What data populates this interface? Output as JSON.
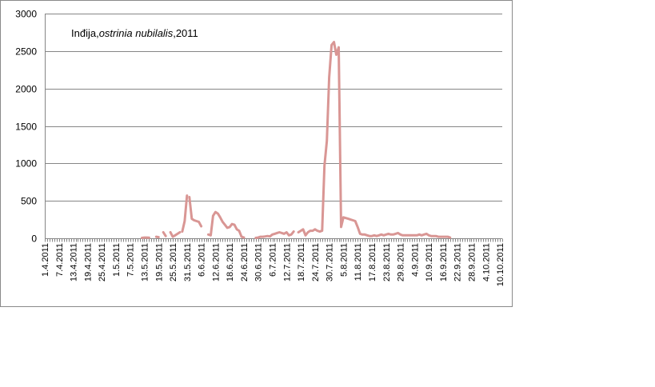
{
  "chart_data": {
    "type": "line",
    "title_parts": {
      "place": "Inđija,",
      "species": "ostrinia nubilalis",
      "year": ",2011"
    },
    "xlabel": "",
    "ylabel": "",
    "ylim": [
      0,
      3000
    ],
    "yticks": [
      0,
      500,
      1000,
      1500,
      2000,
      2500,
      3000
    ],
    "xlim_day": [
      1,
      193
    ],
    "xticks": [
      {
        "label": "1.4.2011",
        "day": 1
      },
      {
        "label": "7.4.2011",
        "day": 7
      },
      {
        "label": "13.4.2011",
        "day": 13
      },
      {
        "label": "19.4.2011",
        "day": 19
      },
      {
        "label": "25.4.2011",
        "day": 25
      },
      {
        "label": "1.5.2011",
        "day": 31
      },
      {
        "label": "7.5.2011",
        "day": 37
      },
      {
        "label": "13.5.2011",
        "day": 43
      },
      {
        "label": "19.5.2011",
        "day": 49
      },
      {
        "label": "25.5.2011",
        "day": 55
      },
      {
        "label": "31.5.2011",
        "day": 61
      },
      {
        "label": "6.6.2011",
        "day": 67
      },
      {
        "label": "12.6.2011",
        "day": 73
      },
      {
        "label": "18.6.2011",
        "day": 79
      },
      {
        "label": "24.6.2011",
        "day": 85
      },
      {
        "label": "30.6.2011",
        "day": 91
      },
      {
        "label": "6.7.2011",
        "day": 97
      },
      {
        "label": "12.7.2011",
        "day": 103
      },
      {
        "label": "18.7.2011",
        "day": 109
      },
      {
        "label": "24.7.2011",
        "day": 115
      },
      {
        "label": "30.7.2011",
        "day": 121
      },
      {
        "label": "5.8.2011",
        "day": 127
      },
      {
        "label": "11.8.2011",
        "day": 133
      },
      {
        "label": "17.8.2011",
        "day": 139
      },
      {
        "label": "23.8.2011",
        "day": 145
      },
      {
        "label": "29.8.2011",
        "day": 151
      },
      {
        "label": "4.9.2011",
        "day": 157
      },
      {
        "label": "10.9.2011",
        "day": 163
      },
      {
        "label": "16.9.2011",
        "day": 169
      },
      {
        "label": "22.9.2011",
        "day": 175
      },
      {
        "label": "28.9.2011",
        "day": 181
      },
      {
        "label": "4.10.2011",
        "day": 187
      },
      {
        "label": "10.10.2011",
        "day": 193
      }
    ],
    "grid": true,
    "legend": "none",
    "series_color": "#d99694",
    "grid_color": "#868686",
    "segments": [
      [
        [
          42,
          5
        ],
        [
          43,
          10
        ],
        [
          44,
          10
        ],
        [
          45,
          8
        ]
      ],
      [
        [
          48,
          20
        ],
        [
          49,
          15
        ]
      ],
      [
        [
          51,
          80
        ],
        [
          52,
          30
        ]
      ],
      [
        [
          54,
          80
        ],
        [
          55,
          20
        ],
        [
          56,
          40
        ],
        [
          57,
          60
        ],
        [
          58,
          80
        ]
      ],
      [
        [
          59,
          90
        ],
        [
          60,
          230
        ],
        [
          61,
          570
        ]
      ],
      [
        [
          62,
          550
        ],
        [
          63,
          260
        ],
        [
          64,
          240
        ],
        [
          65,
          230
        ],
        [
          66,
          220
        ],
        [
          67,
          160
        ]
      ],
      [
        [
          70,
          50
        ],
        [
          71,
          40
        ],
        [
          72,
          300
        ],
        [
          73,
          350
        ],
        [
          74,
          330
        ],
        [
          75,
          280
        ],
        [
          76,
          220
        ],
        [
          77,
          180
        ],
        [
          78,
          140
        ],
        [
          79,
          150
        ],
        [
          80,
          190
        ],
        [
          81,
          180
        ],
        [
          82,
          120
        ],
        [
          83,
          100
        ],
        [
          84,
          20
        ],
        [
          85,
          10
        ]
      ],
      [
        [
          90,
          5
        ],
        [
          91,
          10
        ],
        [
          92,
          20
        ],
        [
          93,
          20
        ],
        [
          94,
          25
        ],
        [
          95,
          30
        ],
        [
          96,
          25
        ],
        [
          97,
          50
        ],
        [
          98,
          60
        ],
        [
          99,
          70
        ],
        [
          100,
          80
        ],
        [
          101,
          70
        ],
        [
          102,
          60
        ],
        [
          103,
          80
        ],
        [
          104,
          40
        ],
        [
          105,
          50
        ],
        [
          106,
          90
        ]
      ],
      [
        [
          108,
          80
        ],
        [
          109,
          100
        ],
        [
          110,
          120
        ],
        [
          111,
          40
        ],
        [
          112,
          80
        ],
        [
          113,
          100
        ],
        [
          114,
          100
        ],
        [
          115,
          120
        ],
        [
          116,
          100
        ],
        [
          117,
          90
        ],
        [
          118,
          100
        ],
        [
          119,
          970
        ],
        [
          120,
          1300
        ],
        [
          121,
          2150
        ],
        [
          122,
          2580
        ],
        [
          123,
          2620
        ],
        [
          124,
          2450
        ],
        [
          125,
          2550
        ],
        [
          126,
          150
        ],
        [
          127,
          280
        ],
        [
          128,
          270
        ],
        [
          129,
          260
        ],
        [
          130,
          250
        ],
        [
          131,
          240
        ],
        [
          132,
          230
        ],
        [
          133,
          150
        ],
        [
          134,
          60
        ],
        [
          135,
          50
        ],
        [
          136,
          50
        ],
        [
          137,
          40
        ],
        [
          138,
          30
        ],
        [
          139,
          30
        ],
        [
          140,
          40
        ],
        [
          141,
          30
        ],
        [
          142,
          40
        ],
        [
          143,
          50
        ],
        [
          144,
          40
        ],
        [
          145,
          50
        ],
        [
          146,
          60
        ],
        [
          147,
          50
        ],
        [
          148,
          50
        ],
        [
          149,
          60
        ],
        [
          150,
          70
        ],
        [
          151,
          50
        ],
        [
          152,
          40
        ],
        [
          153,
          40
        ],
        [
          154,
          40
        ],
        [
          155,
          40
        ],
        [
          156,
          40
        ],
        [
          157,
          40
        ],
        [
          158,
          40
        ],
        [
          159,
          50
        ],
        [
          160,
          40
        ],
        [
          161,
          50
        ],
        [
          162,
          60
        ],
        [
          163,
          40
        ],
        [
          164,
          30
        ],
        [
          165,
          30
        ],
        [
          166,
          30
        ],
        [
          167,
          20
        ],
        [
          168,
          20
        ],
        [
          169,
          20
        ],
        [
          170,
          20
        ],
        [
          171,
          20
        ],
        [
          172,
          10
        ]
      ]
    ]
  }
}
